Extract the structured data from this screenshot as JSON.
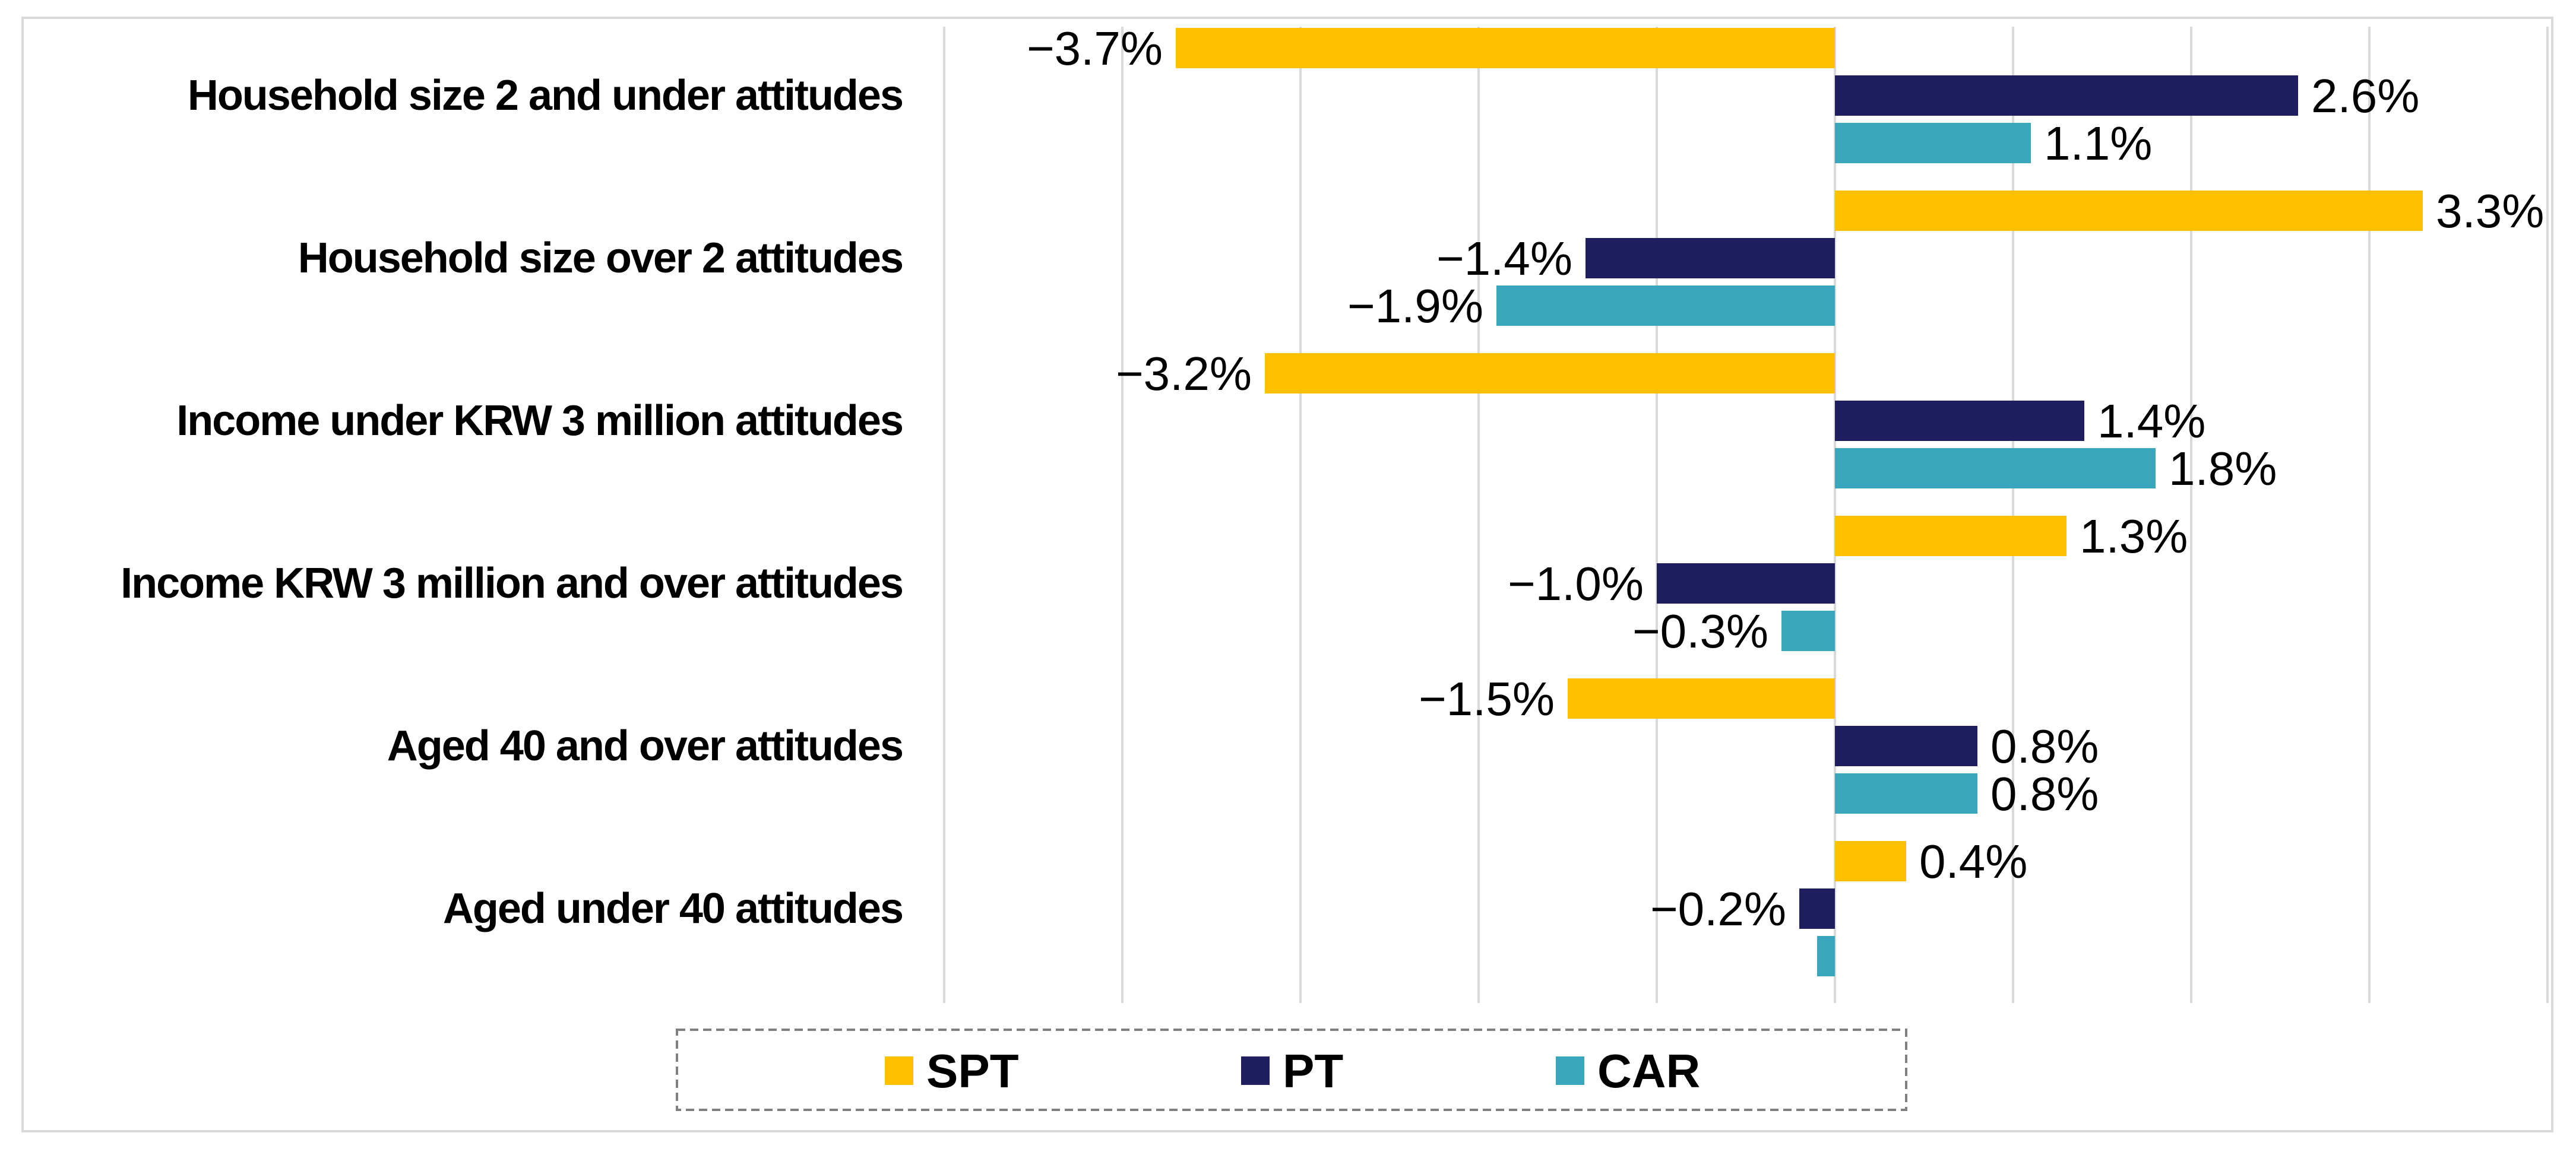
{
  "chart_data": {
    "type": "bar",
    "orientation": "horizontal",
    "categories": [
      "Household size 2 and under attitudes",
      "Household size over 2 attitudes",
      "Income under KRW 3 million attitudes",
      "Income KRW 3 million and over attitudes",
      "Aged 40 and over attitudes",
      "Aged under 40 attitudes"
    ],
    "series": [
      {
        "name": "SPT",
        "color": "#FFC000",
        "values": [
          -3.7,
          3.3,
          -3.2,
          1.3,
          -1.5,
          0.4
        ],
        "labels": [
          "−3.7%",
          "3.3%",
          "−3.2%",
          "1.3%",
          "−1.5%",
          "0.4%"
        ]
      },
      {
        "name": "PT",
        "color": "#1F1F5F",
        "values": [
          2.6,
          -1.4,
          1.4,
          -1.0,
          0.8,
          -0.2
        ],
        "labels": [
          "2.6%",
          "−1.4%",
          "1.4%",
          "−1.0%",
          "0.8%",
          "−0.2%"
        ]
      },
      {
        "name": "CAR",
        "color": "#3AA6BC",
        "values": [
          1.1,
          -1.9,
          1.8,
          -0.3,
          0.8,
          -0.1
        ],
        "labels": [
          "1.1%",
          "−1.9%",
          "1.8%",
          "−0.3%",
          "0.8%",
          ""
        ]
      }
    ],
    "title": "",
    "xlabel": "",
    "ylabel": "",
    "xlim": [
      -5,
      4
    ],
    "x_grid_step": 1,
    "grid": true,
    "tick_labels_visible": false,
    "legend": {
      "position": "bottom",
      "border": "dashed",
      "entries": [
        "SPT",
        "PT",
        "CAR"
      ]
    }
  }
}
